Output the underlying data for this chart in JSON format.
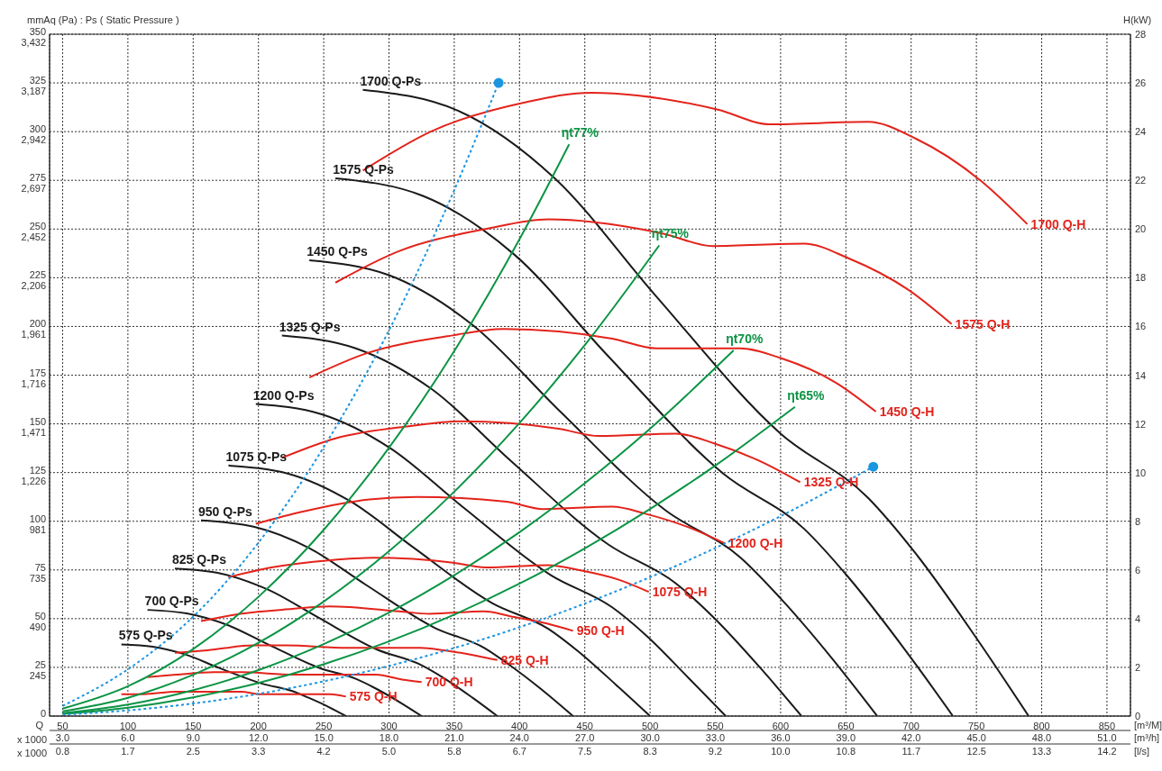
{
  "chart_data": {
    "type": "line",
    "ylabel": "mmAq (Pa) : Ps ( Static Pressure )",
    "y2label": "H(kW)",
    "xlabel": "[m³/M]",
    "x2label": "[m³/h]",
    "annotations": [
      "Q",
      "x 1000",
      "x 1000",
      "[l/s]",
      "0.8",
      "1.7",
      "2.5",
      "3.3",
      "4.2",
      "5.0",
      "5.8",
      "6.7",
      "7.5",
      "8.3",
      "9.2",
      "10.0",
      "10.8",
      "11.7",
      "12.5",
      "13.3",
      "14.2"
    ],
    "xlim": [
      40,
      868
    ],
    "xticks": [
      50,
      100,
      150,
      200,
      250,
      300,
      350,
      400,
      450,
      500,
      550,
      600,
      650,
      700,
      750,
      800,
      850
    ],
    "x2lim": [
      2.4,
      52.08
    ],
    "x2ticks": [
      {
        "value": 3,
        "label": "3.0"
      },
      {
        "value": 6,
        "label": "6.0"
      },
      {
        "value": 9,
        "label": "9.0"
      },
      {
        "value": 12,
        "label": "12.0"
      },
      {
        "value": 15,
        "label": "15.0"
      },
      {
        "value": 18,
        "label": "18.0"
      },
      {
        "value": 21,
        "label": "21.0"
      },
      {
        "value": 24,
        "label": "24.0"
      },
      {
        "value": 27,
        "label": "27.0"
      },
      {
        "value": 30,
        "label": "30.0"
      },
      {
        "value": 33,
        "label": "33.0"
      },
      {
        "value": 36,
        "label": "36.0"
      },
      {
        "value": 39,
        "label": "39.0"
      },
      {
        "value": 42,
        "label": "42.0"
      },
      {
        "value": 45,
        "label": "45.0"
      },
      {
        "value": 48,
        "label": "48.0"
      },
      {
        "value": 51,
        "label": "51.0"
      }
    ],
    "ylim": [
      0,
      350
    ],
    "yticks": [
      0,
      25,
      50,
      75,
      100,
      125,
      150,
      175,
      200,
      225,
      250,
      275,
      300,
      325,
      350
    ],
    "y3lim": [
      0,
      3432
    ],
    "y3ticks": [
      245,
      490,
      735,
      981,
      {
        "value": 1226,
        "label": "1,226"
      },
      {
        "value": 1471,
        "label": "1,471"
      },
      {
        "value": 1716,
        "label": "1,716"
      },
      {
        "value": 1961,
        "label": "1,961"
      },
      {
        "value": 2206,
        "label": "2,206"
      },
      {
        "value": 2452,
        "label": "2,452"
      },
      {
        "value": 2697,
        "label": "2,697"
      },
      {
        "value": 2942,
        "label": "2,942"
      },
      {
        "value": 3187,
        "label": "3,187"
      },
      {
        "value": 3432,
        "label": "3,432"
      }
    ],
    "y2lim": [
      0,
      28
    ],
    "y2ticks": [
      0,
      2,
      4,
      6,
      8,
      10,
      12,
      14,
      16,
      18,
      20,
      22,
      24,
      26,
      28
    ],
    "grid": true,
    "marker": "none",
    "line_style": "solid",
    "series": [
      {
        "name": "575 Q-Ps",
        "color": "#1a1a1a",
        "x": [
          95,
          119,
          144,
          170,
          203,
          226,
          238,
          254,
          267
        ],
        "values": [
          36.8,
          35.6,
          31.6,
          24.7,
          16.6,
          12.8,
          9.5,
          4.6,
          0
        ]
      },
      {
        "name": "700 Q-Ps",
        "color": "#1a1a1a",
        "x": [
          115,
          145,
          176,
          208,
          247,
          275,
          290,
          309,
          325
        ],
        "values": [
          54.5,
          52.7,
          46.8,
          36.6,
          24.6,
          19,
          14.1,
          6.8,
          0
        ]
      },
      {
        "name": "825 Q-Ps",
        "color": "#1a1a1a",
        "x": [
          136,
          171,
          207,
          245,
          291,
          324,
          342,
          364,
          383
        ],
        "values": [
          75.7,
          73.2,
          65,
          50.9,
          34.1,
          26.4,
          19.5,
          9.4,
          0
        ]
      },
      {
        "name": "950 Q-Ps",
        "color": "#1a1a1a",
        "x": [
          156,
          197,
          239,
          282,
          335,
          373,
          393,
          419,
          441
        ],
        "values": [
          100.4,
          97.1,
          86.2,
          67.5,
          45.3,
          35,
          25.9,
          12.5,
          0
        ]
      },
      {
        "name": "1075 Q-Ps",
        "color": "#1a1a1a",
        "x": [
          177,
          223,
          270,
          319,
          379,
          422,
          445,
          474,
          500
        ],
        "values": [
          128.6,
          124.4,
          110.4,
          86.4,
          58,
          44.8,
          33.2,
          16,
          0
        ]
      },
      {
        "name": "1200 Q-Ps",
        "color": "#1a1a1a",
        "x": [
          198,
          248,
          301,
          356,
          424,
          471,
          497,
          529,
          558
        ],
        "values": [
          160.2,
          155,
          137.5,
          107.6,
          72.3,
          55.8,
          41.4,
          19.9,
          0
        ]
      },
      {
        "name": "1325 Q-Ps",
        "color": "#1a1a1a",
        "x": [
          218,
          274,
          333,
          393,
          468,
          520,
          549,
          585,
          616
        ],
        "values": [
          195.3,
          188.9,
          167.7,
          131.2,
          88.1,
          68,
          50.4,
          24.3,
          0
        ]
      },
      {
        "name": "1450 Q-Ps",
        "color": "#1a1a1a",
        "x": [
          239,
          300,
          364,
          430,
          512,
          569,
          600,
          640,
          674
        ],
        "values": [
          233.9,
          226.3,
          200.8,
          157.1,
          105.5,
          81.5,
          60.4,
          29.1,
          0
        ]
      },
      {
        "name": "1575 Q-Ps",
        "color": "#1a1a1a",
        "x": [
          259,
          326,
          396,
          467,
          556,
          618,
          652,
          695,
          732
        ],
        "values": [
          276,
          267,
          236.9,
          185.4,
          124.5,
          96.1,
          71.2,
          34.3,
          0
        ]
      },
      {
        "name": "1700 Q-Ps",
        "color": "#1a1a1a",
        "x": [
          280,
          352,
          427,
          504,
          600,
          667,
          704,
          750,
          790
        ],
        "values": [
          321.5,
          311,
          276,
          216,
          145,
          112,
          83,
          40,
          0
        ]
      },
      {
        "name": "575 Q-H",
        "axis": "y2",
        "color": "#e3231b",
        "x": [
          95,
          112,
          137,
          154,
          187,
          200,
          226,
          238,
          255,
          267
        ],
        "values": [
          0.9,
          0.9,
          1,
          1,
          1,
          0.9,
          0.9,
          0.9,
          0.9,
          0.8
        ]
      },
      {
        "name": "700 Q-H",
        "axis": "y2",
        "color": "#e3231b",
        "x": [
          115,
          137,
          166,
          187,
          227,
          244,
          275,
          290,
          310,
          325
        ],
        "values": [
          1.6,
          1.7,
          1.8,
          1.8,
          1.7,
          1.7,
          1.7,
          1.7,
          1.5,
          1.4
        ]
      },
      {
        "name": "825 Q-H",
        "axis": "y2",
        "color": "#e3231b",
        "x": [
          136,
          161,
          196,
          221,
          268,
          287,
          324,
          342,
          365,
          383
        ],
        "values": [
          2.6,
          2.7,
          2.9,
          2.9,
          2.8,
          2.8,
          2.8,
          2.7,
          2.5,
          2.3
        ]
      },
      {
        "name": "950 Q-H",
        "axis": "y2",
        "color": "#e3231b",
        "x": [
          156,
          186,
          226,
          254,
          308,
          331,
          373,
          393,
          421,
          441
        ],
        "values": [
          3.9,
          4.2,
          4.4,
          4.5,
          4.3,
          4.2,
          4.3,
          4.1,
          3.8,
          3.5
        ]
      },
      {
        "name": "1075 Q-H",
        "axis": "y2",
        "color": "#e3231b",
        "x": [
          177,
          210,
          255,
          288,
          349,
          374,
          422,
          445,
          476,
          499
        ],
        "values": [
          5.7,
          6.1,
          6.4,
          6.5,
          6.3,
          6.1,
          6.2,
          6,
          5.6,
          5.1
        ]
      },
      {
        "name": "1200 Q-H",
        "axis": "y2",
        "color": "#e3231b",
        "x": [
          198,
          234,
          285,
          321,
          390,
          418,
          471,
          497,
          532,
          557
        ],
        "values": [
          7.9,
          8.4,
          8.9,
          9,
          8.8,
          8.5,
          8.6,
          8.3,
          7.7,
          7.1
        ]
      },
      {
        "name": "1325 Q-H",
        "axis": "y2",
        "color": "#e3231b",
        "x": [
          218,
          259,
          315,
          355,
          430,
          461,
          520,
          549,
          587,
          615
        ],
        "values": [
          10.6,
          11.4,
          11.9,
          12.1,
          11.8,
          11.5,
          11.6,
          11.2,
          10.4,
          9.6
        ]
      },
      {
        "name": "1450 Q-H",
        "axis": "y2",
        "color": "#e3231b",
        "x": [
          239,
          283,
          345,
          388,
          471,
          505,
          569,
          600,
          642,
          673
        ],
        "values": [
          13.9,
          14.9,
          15.6,
          15.9,
          15.5,
          15.1,
          15.1,
          14.7,
          13.7,
          12.5
        ]
      },
      {
        "name": "1575 Q-H",
        "axis": "y2",
        "color": "#e3231b",
        "x": [
          259,
          308,
          374,
          422,
          511,
          548,
          618,
          652,
          698,
          731
        ],
        "values": [
          17.8,
          19.1,
          20,
          20.4,
          19.8,
          19.3,
          19.4,
          18.8,
          17.5,
          16.1
        ]
      },
      {
        "name": "1700 Q-H",
        "axis": "y2",
        "color": "#e3231b",
        "x": [
          280,
          332,
          404,
          455,
          552,
          592,
          667,
          704,
          753,
          789
        ],
        "values": [
          22.4,
          24,
          25.2,
          25.6,
          24.9,
          24.3,
          24.4,
          23.7,
          22,
          20.2
        ]
      },
      {
        "name": "ηt77%",
        "color": "#0b9444",
        "x": [
          50,
          100,
          150,
          200,
          250,
          300,
          350,
          400,
          438
        ],
        "values": [
          3.8,
          15.3,
          34.4,
          61.2,
          95.6,
          137.7,
          187.4,
          244.8,
          293.5
        ]
      },
      {
        "name": "ηt75%",
        "color": "#0b9444",
        "x": [
          50,
          100,
          150,
          200,
          250,
          300,
          350,
          400,
          450,
          507
        ],
        "values": [
          2.4,
          9.4,
          21.2,
          37.6,
          58.8,
          84.6,
          115.2,
          150.4,
          190.4,
          241.6
        ]
      },
      {
        "name": "ηt70%",
        "color": "#0b9444",
        "x": [
          50,
          100,
          150,
          200,
          250,
          300,
          350,
          400,
          450,
          500,
          564
        ],
        "values": [
          1.5,
          5.9,
          13.3,
          23.6,
          36.9,
          53.1,
          72.3,
          94.4,
          119.5,
          147.5,
          187.7
        ]
      },
      {
        "name": "ηt65%",
        "color": "#0b9444",
        "x": [
          50,
          100,
          150,
          200,
          250,
          300,
          350,
          400,
          450,
          500,
          550,
          611
        ],
        "values": [
          1.1,
          4.3,
          9.6,
          17,
          26.6,
          38.3,
          52.1,
          68,
          86.1,
          106.3,
          128.6,
          158.7
        ]
      },
      {
        "line_style": "dotted",
        "color": "#1b95e0",
        "x": [
          50,
          100,
          150,
          200,
          250,
          300,
          350,
          384
        ],
        "values": [
          5.2,
          24,
          51,
          89,
          138,
          198,
          270,
          325
        ]
      },
      {
        "line_style": "dotted",
        "color": "#1b95e0",
        "x": [
          50,
          100,
          200,
          300,
          400,
          500,
          600,
          671
        ],
        "values": [
          0.7,
          2.9,
          11.4,
          25.7,
          45.6,
          71.3,
          102.6,
          128
        ]
      },
      {
        "type": "scatter",
        "marker": "circle",
        "color": "#1b95e0",
        "x": [
          384,
          671
        ],
        "values": [
          325,
          128
        ]
      }
    ]
  }
}
